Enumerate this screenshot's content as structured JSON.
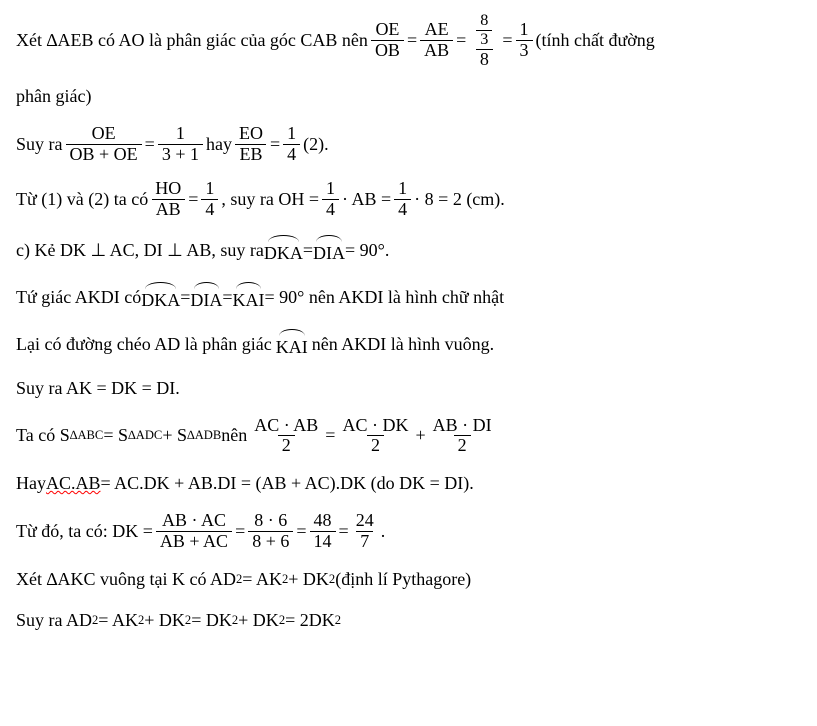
{
  "line1_a": "Xét ∆AEB có AO là phân giác của góc CAB nên ",
  "f1_num": "OE",
  "f1_den": "OB",
  "eq": " = ",
  "f2_num": "AE",
  "f2_den": "AB",
  "nf_outer_num_num": "8",
  "nf_outer_num_den": "3",
  "nf_outer_den": "8",
  "f3_num": "1",
  "f3_den": "3",
  "line1_b": "  (tính chất đường",
  "line2": "phân giác)",
  "line3_a": "Suy ra ",
  "f4_num": "OE",
  "f4_den": "OB + OE",
  "f5_num": "1",
  "f5_den": "3 + 1",
  "line3_b": " hay ",
  "f6_num": "EO",
  "f6_den": "EB",
  "f7_num": "1",
  "f7_den": "4",
  "line3_c": " (2).",
  "line4_a": "Từ (1) và (2) ta có ",
  "f8_num": "HO",
  "f8_den": "AB",
  "f9_num": "1",
  "f9_den": "4",
  "line4_b": ", suy ra  OH = ",
  "f10_num": "1",
  "f10_den": "4",
  "line4_c": " · AB = ",
  "f11_num": "1",
  "f11_den": "4",
  "line4_d": " · 8 = 2  (cm).",
  "line5_a": "c) Kẻ DK ⊥ AC, DI ⊥ AB, suy ra ",
  "hat_DKA": "DKA",
  "hat_DIA": "DIA",
  "line5_b": " = 90°.",
  "line6_a": "Tứ giác AKDI có ",
  "hat_KAI": "KAI",
  "line6_b": " = 90°  nên AKDI là hình chữ nhật",
  "line7_a": "Lại có đường chéo AD là phân giác ",
  "line7_b": " nên AKDI là hình vuông.",
  "line8": "Suy ra AK = DK = DI.",
  "line9_a": "Ta có S",
  "tri_ABC": "∆ABC",
  "line9_eq1": " = S",
  "tri_ADC": "∆ADC",
  "line9_plus": " + S",
  "tri_ADB": "∆ADB",
  "line9_b": " nên ",
  "f12_num": "AC · AB",
  "f12_den": "2",
  "f13_num": "AC · DK",
  "f13_den": "2",
  "plus": " + ",
  "f14_num": "AB · DI",
  "f14_den": "2",
  "line10_a": "Hay ",
  "acab": "AC.AB",
  "line10_b": " = AC.DK + AB.DI = (AB + AC).DK (do DK = DI).",
  "line11_a": "Từ đó, ta có:  DK = ",
  "f15_num": "AB · AC",
  "f15_den": "AB + AC",
  "f16_num": "8 · 6",
  "f16_den": "8 + 6",
  "f17_num": "48",
  "f17_den": "14",
  "f18_num": "24",
  "f18_den": "7",
  "dot": ".",
  "line12_a": "Xét ∆AKC vuông tại K có AD",
  "sq": "2",
  "line12_b": " = AK",
  "line12_c": " + DK",
  "line12_d": " (định lí Pythagore)",
  "line13_a": "Suy ra AD",
  "line13_b": " = AK",
  "line13_c": " + DK",
  "line13_d": " = DK",
  "line13_e": " + DK",
  "line13_f": " = 2DK"
}
